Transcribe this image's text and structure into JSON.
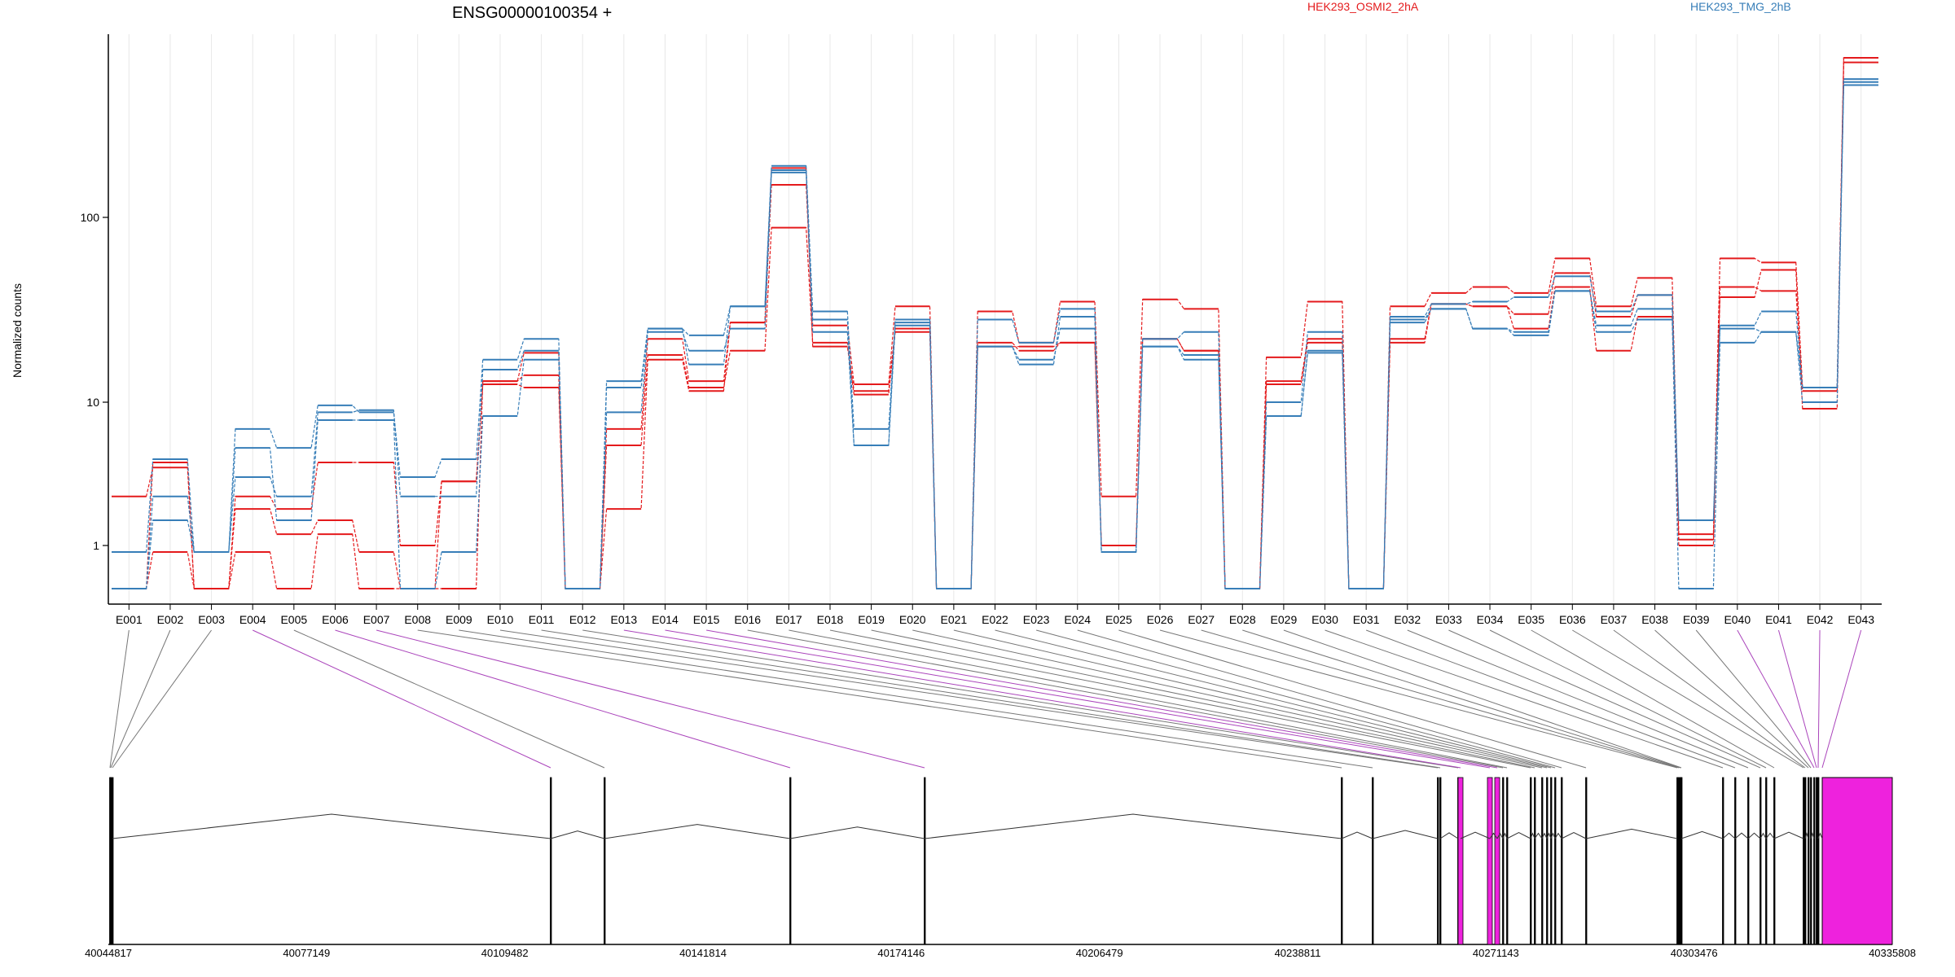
{
  "chart_data": {
    "type": "line",
    "title": "ENSG00000100354 +",
    "ylabel": "Normalized counts",
    "y_scale": "log",
    "y_ticks": [
      1,
      10,
      100
    ],
    "y_tick_labels": [
      "1",
      "10",
      "100"
    ],
    "legend_placement": "top",
    "grid": "vertical-light",
    "x": [
      "E001",
      "E002",
      "E003",
      "E004",
      "E005",
      "E006",
      "E007",
      "E008",
      "E009",
      "E010",
      "E011",
      "E012",
      "E013",
      "E014",
      "E015",
      "E016",
      "E017",
      "E018",
      "E019",
      "E020",
      "E021",
      "E022",
      "E023",
      "E024",
      "E025",
      "E026",
      "E027",
      "E028",
      "E029",
      "E030",
      "E031",
      "E032",
      "E033",
      "E034",
      "E035",
      "E036",
      "E037",
      "E038",
      "E039",
      "E040",
      "E041",
      "E042",
      "E043"
    ],
    "series": [
      {
        "name": "HEK293_OSMI2_2hA",
        "color": "#e41a1c",
        "replicates": [
          [
            2.2,
            3.5,
            0.5,
            2.2,
            1.8,
            3.8,
            3.8,
            1.0,
            2.8,
            13,
            14,
            0.5,
            6.5,
            22,
            13,
            27,
            150,
            26,
            12.5,
            33,
            0.5,
            31,
            21,
            35,
            2.2,
            36,
            32,
            0.5,
            17.5,
            35,
            0.5,
            33,
            39,
            42,
            39,
            60,
            33,
            47,
            1.2,
            60,
            57,
            12,
            730
          ],
          [
            0.5,
            3.8,
            0.5,
            1.8,
            1.2,
            1.5,
            0.9,
            0.5,
            2.8,
            12.5,
            12,
            0.5,
            5.0,
            18,
            12,
            19,
            88,
            21,
            11.5,
            25,
            0.5,
            21,
            19,
            21,
            1.0,
            22,
            19,
            0.5,
            13,
            22,
            0.5,
            22,
            34,
            33,
            30,
            50,
            29,
            38,
            1.0,
            42,
            40,
            11.5,
            690
          ],
          [
            0.5,
            0.9,
            0.5,
            0.9,
            0.5,
            1.2,
            0.5,
            0.5,
            0.5,
            13,
            18.5,
            0.5,
            1.8,
            17,
            11.5,
            27,
            185,
            20,
            11.0,
            24,
            0.5,
            20,
            20,
            21,
            1.0,
            22,
            19,
            0.5,
            12.5,
            21,
            0.5,
            21,
            34,
            33,
            25,
            42,
            19,
            29,
            1.1,
            37,
            52,
            9.0,
            730
          ]
        ]
      },
      {
        "name": "HEK293_TMG_2hB",
        "color": "#377eb8",
        "replicates": [
          [
            0.9,
            4.0,
            0.9,
            6.5,
            4.8,
            9.5,
            8.5,
            3.0,
            4.0,
            17,
            22,
            0.5,
            13,
            25,
            23,
            33,
            190,
            31,
            6.5,
            27,
            0.5,
            28,
            21,
            32,
            0.9,
            22,
            24,
            0.5,
            10,
            24,
            0.5,
            29,
            34,
            35,
            37,
            48,
            31,
            38,
            1.5,
            26,
            31,
            12,
            560
          ],
          [
            0.5,
            2.2,
            0.9,
            3.0,
            2.2,
            8.5,
            8.8,
            2.2,
            2.2,
            15,
            19,
            0.5,
            8.5,
            24,
            19,
            25,
            180,
            28,
            5.0,
            26,
            0.5,
            20,
            17,
            25,
            0.9,
            20,
            18,
            0.5,
            8.0,
            19,
            0.5,
            28,
            32,
            25,
            24,
            40,
            26,
            32,
            1.5,
            25,
            24,
            12,
            540
          ],
          [
            0.5,
            1.5,
            0.9,
            4.8,
            1.5,
            7.5,
            7.5,
            0.5,
            0.9,
            8.0,
            17,
            0.5,
            12,
            25,
            16,
            33,
            175,
            24,
            5.0,
            28,
            0.5,
            20,
            16,
            29,
            0.9,
            20,
            17,
            0.5,
            8.0,
            18.5,
            0.5,
            27,
            32,
            25,
            23,
            40,
            24,
            28,
            0.5,
            21,
            24,
            10,
            520
          ]
        ]
      }
    ],
    "gene_model": {
      "coordinate_ticks": [
        "40044817",
        "40077149",
        "40109482",
        "40141814",
        "40174146",
        "40206479",
        "40238811",
        "40271143",
        "40303476",
        "40335808"
      ]
    }
  }
}
